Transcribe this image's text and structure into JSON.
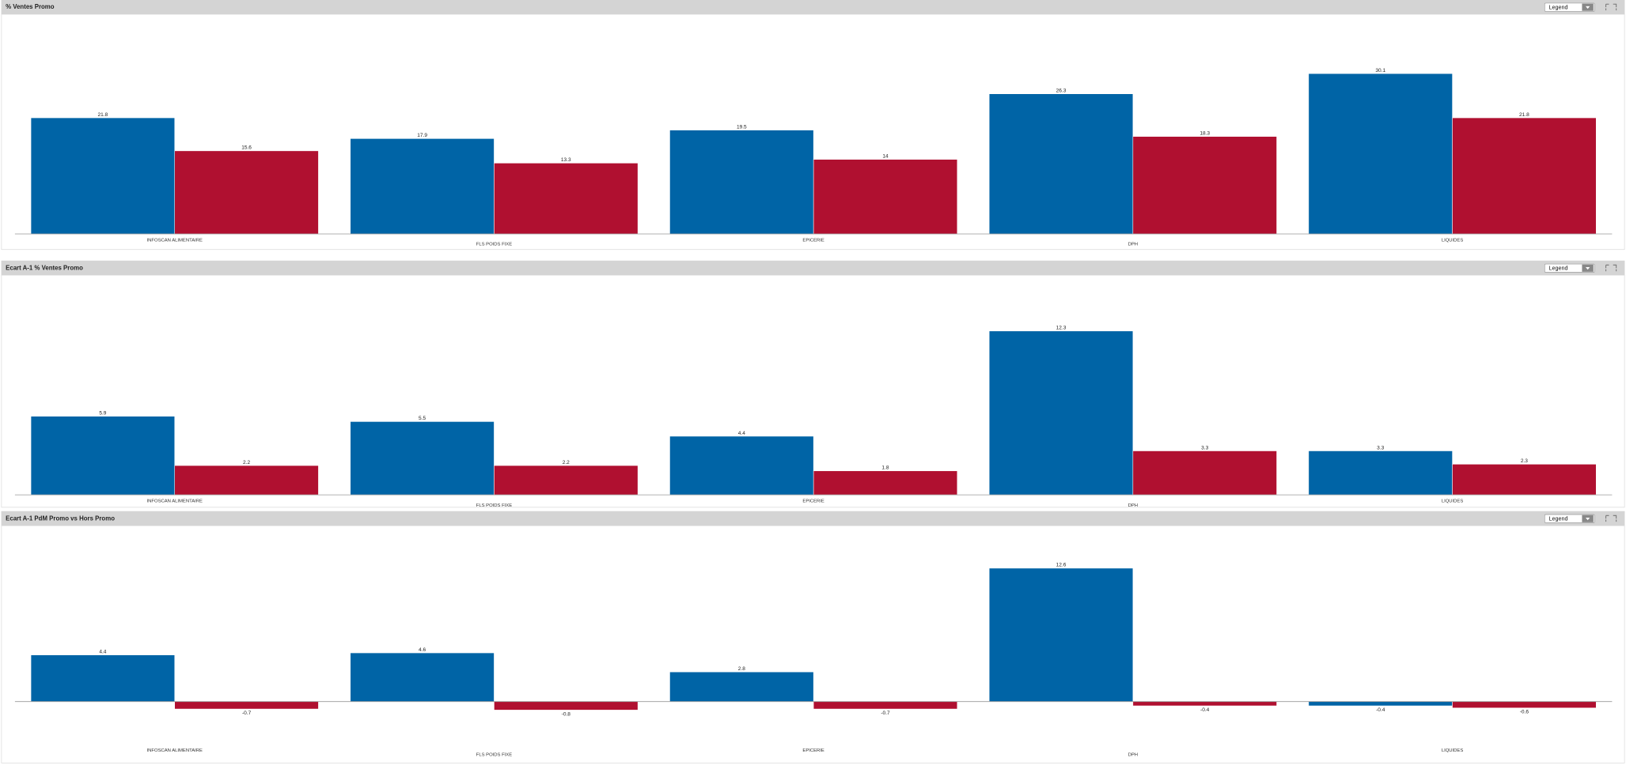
{
  "chart_data": [
    {
      "type": "bar",
      "title": "% Ventes Promo",
      "legend_button": "Legend",
      "categories": [
        "INFOSCAN ALIMENTAIRE",
        "FLS POIDS FIXE",
        "EPICERIE",
        "DPH",
        "LIQUIDES"
      ],
      "series": [
        {
          "color": "#0064a6",
          "values": [
            21.8,
            17.9,
            19.5,
            26.3,
            30.1
          ]
        },
        {
          "color": "#b01030",
          "values": [
            15.6,
            13.3,
            14.0,
            18.3,
            21.8
          ]
        }
      ],
      "ylim": [
        0,
        41
      ]
    },
    {
      "type": "bar",
      "title": "Ecart A-1 % Ventes Promo",
      "legend_button": "Legend",
      "categories": [
        "INFOSCAN ALIMENTAIRE",
        "FLS POIDS FIXE",
        "EPICERIE",
        "DPH",
        "LIQUIDES"
      ],
      "series": [
        {
          "color": "#0064a6",
          "values": [
            5.9,
            5.5,
            4.4,
            12.3,
            3.3
          ]
        },
        {
          "color": "#b01030",
          "values": [
            2.2,
            2.2,
            1.8,
            3.3,
            2.3
          ]
        }
      ],
      "ylim": [
        0,
        16.4
      ]
    },
    {
      "type": "bar",
      "title": "Ecart A-1 PdM Promo vs Hors Promo",
      "legend_button": "Legend",
      "categories": [
        "INFOSCAN ALIMENTAIRE",
        "FLS POIDS FIXE",
        "EPICERIE",
        "DPH",
        "LIQUIDES"
      ],
      "series": [
        {
          "color": "#0064a6",
          "values": [
            4.4,
            4.6,
            2.8,
            12.6,
            -0.4
          ]
        },
        {
          "color": "#b01030",
          "values": [
            -0.7,
            -0.8,
            -0.7,
            -0.4,
            -0.6
          ]
        }
      ],
      "ylim": [
        -1.4,
        16.4
      ]
    }
  ]
}
